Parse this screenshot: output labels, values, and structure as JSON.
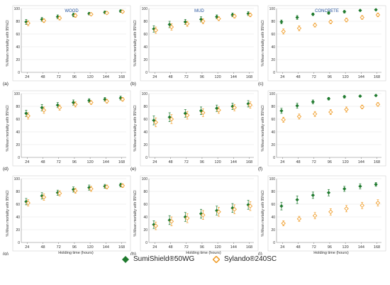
{
  "figure": {
    "column_titles": [
      "WOOD",
      "MUD",
      "CONCRETE"
    ],
    "panel_letters": [
      "(a)",
      "(b)",
      "(c)",
      "(d)",
      "(e)",
      "(f)",
      "(g)",
      "(h)",
      "(i)"
    ],
    "y_axis_label": "% Mean mortality with 95%CI",
    "x_axis_label": "Holding time (hours)"
  },
  "legend": {
    "series_1": "SumiShield®50WG",
    "series_2": "Sylando®240SC"
  },
  "colors": {
    "series_1": "#1f7a2e",
    "series_2": "#f0a030",
    "panel_bg": "#ffffff",
    "axis": "#888888",
    "grid": "#e6e6e6"
  },
  "chart_data": [
    {
      "panel": "(a)",
      "title": "WOOD",
      "type": "scatter",
      "ylim": [
        0,
        100
      ],
      "x": [
        24,
        48,
        72,
        96,
        120,
        144,
        168
      ],
      "series": [
        {
          "name": "SumiShield®50WG",
          "values": [
            79,
            83,
            87,
            90,
            92,
            94,
            96
          ],
          "ci": [
            4,
            3,
            3,
            3,
            2,
            2,
            2
          ]
        },
        {
          "name": "Sylando®240SC",
          "values": [
            77,
            81,
            85,
            89,
            91,
            93,
            95
          ],
          "ci": [
            4,
            3,
            3,
            3,
            2,
            2,
            2
          ]
        }
      ]
    },
    {
      "panel": "(b)",
      "title": "MUD",
      "type": "scatter",
      "ylim": [
        0,
        100
      ],
      "x": [
        24,
        48,
        72,
        96,
        120,
        144,
        168
      ],
      "series": [
        {
          "name": "SumiShield®50WG",
          "values": [
            68,
            75,
            79,
            83,
            87,
            90,
            92
          ],
          "ci": [
            5,
            5,
            4,
            4,
            3,
            3,
            3
          ]
        },
        {
          "name": "Sylando®240SC",
          "values": [
            66,
            71,
            76,
            80,
            84,
            88,
            90
          ],
          "ci": [
            5,
            5,
            4,
            4,
            3,
            3,
            3
          ]
        }
      ]
    },
    {
      "panel": "(c)",
      "title": "CONCRETE",
      "type": "scatter",
      "ylim": [
        0,
        100
      ],
      "x": [
        24,
        48,
        72,
        96,
        120,
        144,
        168
      ],
      "series": [
        {
          "name": "SumiShield®50WG",
          "values": [
            79,
            86,
            91,
            93,
            95,
            97,
            98
          ],
          "ci": [
            3,
            3,
            2,
            2,
            2,
            1,
            1
          ]
        },
        {
          "name": "Sylando®240SC",
          "values": [
            64,
            69,
            74,
            79,
            82,
            86,
            90
          ],
          "ci": [
            4,
            4,
            3,
            3,
            3,
            3,
            3
          ]
        }
      ]
    },
    {
      "panel": "(d)",
      "type": "scatter",
      "ylim": [
        0,
        100
      ],
      "x": [
        24,
        48,
        72,
        96,
        120,
        144,
        168
      ],
      "series": [
        {
          "name": "SumiShield®50WG",
          "values": [
            69,
            78,
            82,
            86,
            89,
            91,
            93
          ],
          "ci": [
            5,
            5,
            4,
            4,
            3,
            3,
            3
          ]
        },
        {
          "name": "Sylando®240SC",
          "values": [
            65,
            74,
            78,
            83,
            86,
            88,
            91
          ],
          "ci": [
            5,
            5,
            4,
            4,
            3,
            3,
            3
          ]
        }
      ]
    },
    {
      "panel": "(e)",
      "type": "scatter",
      "ylim": [
        0,
        100
      ],
      "x": [
        24,
        48,
        72,
        96,
        120,
        144,
        168
      ],
      "series": [
        {
          "name": "SumiShield®50WG",
          "values": [
            58,
            63,
            69,
            73,
            77,
            80,
            84
          ],
          "ci": [
            7,
            7,
            6,
            6,
            5,
            5,
            5
          ]
        },
        {
          "name": "Sylando®240SC",
          "values": [
            55,
            60,
            66,
            70,
            74,
            78,
            82
          ],
          "ci": [
            7,
            7,
            6,
            6,
            5,
            5,
            5
          ]
        }
      ]
    },
    {
      "panel": "(f)",
      "type": "scatter",
      "ylim": [
        0,
        100
      ],
      "x": [
        24,
        48,
        72,
        96,
        120,
        144,
        168
      ],
      "series": [
        {
          "name": "SumiShield®50WG",
          "values": [
            73,
            81,
            87,
            92,
            95,
            96,
            97
          ],
          "ci": [
            4,
            4,
            3,
            2,
            2,
            1,
            1
          ]
        },
        {
          "name": "Sylando®240SC",
          "values": [
            59,
            64,
            68,
            71,
            75,
            79,
            83
          ],
          "ci": [
            4,
            4,
            4,
            4,
            4,
            3,
            3
          ]
        }
      ]
    },
    {
      "panel": "(g)",
      "type": "scatter",
      "ylim": [
        0,
        100
      ],
      "x": [
        24,
        48,
        72,
        96,
        120,
        144,
        168
      ],
      "xlabel": "Holding time (hours)",
      "series": [
        {
          "name": "SumiShield®50WG",
          "values": [
            64,
            73,
            78,
            83,
            86,
            88,
            90
          ],
          "ci": [
            5,
            5,
            4,
            4,
            4,
            3,
            3
          ]
        },
        {
          "name": "Sylando®240SC",
          "values": [
            62,
            71,
            77,
            81,
            84,
            87,
            89
          ],
          "ci": [
            5,
            5,
            4,
            4,
            4,
            3,
            3
          ]
        }
      ]
    },
    {
      "panel": "(h)",
      "type": "scatter",
      "ylim": [
        0,
        100
      ],
      "x": [
        24,
        48,
        72,
        96,
        120,
        144,
        168
      ],
      "xlabel": "Holding time (hours)",
      "series": [
        {
          "name": "SumiShield®50WG",
          "values": [
            28,
            35,
            40,
            45,
            50,
            54,
            59
          ],
          "ci": [
            6,
            7,
            7,
            7,
            7,
            7,
            7
          ]
        },
        {
          "name": "Sylando®240SC",
          "values": [
            26,
            33,
            38,
            43,
            48,
            52,
            57
          ],
          "ci": [
            6,
            7,
            7,
            7,
            7,
            7,
            7
          ]
        }
      ]
    },
    {
      "panel": "(i)",
      "type": "scatter",
      "ylim": [
        0,
        100
      ],
      "x": [
        24,
        48,
        72,
        96,
        120,
        144,
        168
      ],
      "xlabel": "Holding time (hours)",
      "series": [
        {
          "name": "SumiShield®50WG",
          "values": [
            57,
            67,
            74,
            78,
            84,
            88,
            91
          ],
          "ci": [
            6,
            6,
            5,
            5,
            4,
            4,
            3
          ]
        },
        {
          "name": "Sylando®240SC",
          "values": [
            30,
            37,
            42,
            48,
            53,
            58,
            62
          ],
          "ci": [
            4,
            4,
            5,
            5,
            5,
            5,
            5
          ]
        }
      ]
    }
  ]
}
